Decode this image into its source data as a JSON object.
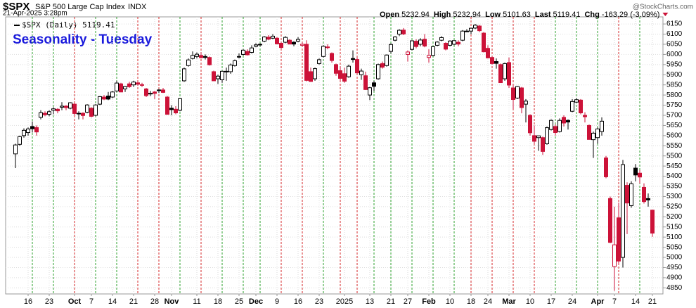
{
  "chart_data": {
    "type": "candlestick",
    "symbol": "$SPX",
    "name": "S&P 500 Large Cap Index",
    "exchange": "INDX",
    "date": "21-Apr-2025 3:28pm",
    "quote": [
      {
        "label": "Open",
        "value": "5232.94"
      },
      {
        "label": "High",
        "value": "5232.94"
      },
      {
        "label": "Low",
        "value": "5101.63"
      },
      {
        "label": "Last",
        "value": "5119.41"
      },
      {
        "label": "Chg",
        "value": "-163.29 (-3.09%)"
      }
    ],
    "watermark": "@StockCharts.com",
    "legend": "$SPX (Daily) 5119.41",
    "title": "Seasonality - Tuesday",
    "title_color": "#1a1adc",
    "up_color": "#000000",
    "down_color": "#cc1238",
    "grid": true,
    "ylim": [
      4820,
      6185
    ],
    "yticks": [
      4850,
      4900,
      4950,
      5000,
      5050,
      5100,
      5150,
      5200,
      5250,
      5300,
      5350,
      5400,
      5450,
      5500,
      5550,
      5600,
      5650,
      5700,
      5750,
      5800,
      5850,
      5900,
      5950,
      6000,
      6050,
      6100,
      6150
    ],
    "categories": [
      null,
      null,
      null,
      "16",
      null,
      null,
      null,
      null,
      "23",
      null,
      null,
      null,
      null,
      null,
      "Oct",
      null,
      null,
      null,
      "7",
      null,
      null,
      null,
      null,
      "14",
      null,
      null,
      null,
      null,
      "21",
      null,
      null,
      null,
      null,
      "28",
      null,
      null,
      null,
      "Nov",
      null,
      null,
      null,
      null,
      null,
      "11",
      null,
      null,
      null,
      null,
      "18",
      null,
      null,
      null,
      null,
      "25",
      null,
      null,
      null,
      "Dec",
      null,
      null,
      null,
      null,
      "9",
      null,
      null,
      null,
      null,
      "16",
      null,
      null,
      null,
      null,
      "23",
      null,
      null,
      null,
      null,
      null,
      "2025",
      null,
      null,
      null,
      null,
      null,
      "13",
      null,
      null,
      null,
      null,
      "21",
      null,
      null,
      null,
      "27",
      null,
      null,
      null,
      null,
      "Feb",
      null,
      null,
      null,
      null,
      "10",
      null,
      null,
      null,
      null,
      "18",
      null,
      null,
      null,
      "24",
      null,
      null,
      null,
      null,
      "Mar",
      null,
      null,
      null,
      null,
      "10",
      null,
      null,
      null,
      null,
      "17",
      null,
      null,
      null,
      null,
      "24",
      null,
      null,
      null,
      null,
      null,
      "Apr",
      null,
      null,
      null,
      "7",
      null,
      null,
      null,
      null,
      "14",
      null,
      null,
      null,
      "21"
    ],
    "ohlc": [
      [
        5510,
        5560,
        5440,
        5554
      ],
      [
        5557,
        5600,
        5550,
        5595
      ],
      [
        5600,
        5636,
        5590,
        5626
      ],
      [
        5615,
        5640,
        5600,
        5633
      ],
      [
        5645,
        5670,
        5615,
        5634
      ],
      [
        5640,
        5650,
        5600,
        5618
      ],
      [
        5690,
        5725,
        5680,
        5713
      ],
      [
        5710,
        5720,
        5695,
        5703
      ],
      [
        5705,
        5725,
        5695,
        5718
      ],
      [
        5725,
        5740,
        5705,
        5732
      ],
      [
        5730,
        5735,
        5710,
        5722
      ],
      [
        5740,
        5765,
        5725,
        5745
      ],
      [
        5745,
        5750,
        5725,
        5738
      ],
      [
        5735,
        5765,
        5730,
        5762
      ],
      [
        5755,
        5760,
        5700,
        5709
      ],
      [
        5710,
        5720,
        5680,
        5709
      ],
      [
        5710,
        5715,
        5680,
        5699
      ],
      [
        5715,
        5755,
        5710,
        5751
      ],
      [
        5735,
        5740,
        5690,
        5695
      ],
      [
        5700,
        5755,
        5695,
        5751
      ],
      [
        5755,
        5795,
        5750,
        5792
      ],
      [
        5790,
        5800,
        5775,
        5780
      ],
      [
        5795,
        5815,
        5775,
        5780
      ],
      [
        5790,
        5820,
        5785,
        5815
      ],
      [
        5820,
        5870,
        5815,
        5859
      ],
      [
        5855,
        5860,
        5815,
        5815
      ],
      [
        5830,
        5845,
        5815,
        5842
      ],
      [
        5855,
        5865,
        5835,
        5841
      ],
      [
        5850,
        5870,
        5840,
        5864
      ],
      [
        5860,
        5865,
        5845,
        5853
      ],
      [
        5850,
        5860,
        5840,
        5851
      ],
      [
        5830,
        5835,
        5790,
        5797
      ],
      [
        5805,
        5820,
        5795,
        5809
      ],
      [
        5815,
        5820,
        5780,
        5808
      ],
      [
        5825,
        5830,
        5810,
        5823
      ],
      [
        5825,
        5835,
        5810,
        5813
      ],
      [
        5790,
        5795,
        5705,
        5705
      ],
      [
        5735,
        5750,
        5700,
        5728
      ],
      [
        5730,
        5745,
        5705,
        5712
      ],
      [
        5725,
        5785,
        5720,
        5782
      ],
      [
        5870,
        5935,
        5865,
        5929
      ],
      [
        5945,
        5980,
        5940,
        5973
      ],
      [
        5980,
        6015,
        5975,
        5995
      ],
      [
        5990,
        6010,
        5980,
        6001
      ],
      [
        5995,
        6010,
        5980,
        5984
      ],
      [
        5990,
        6000,
        5975,
        5985
      ],
      [
        5985,
        5990,
        5945,
        5949
      ],
      [
        5915,
        5920,
        5870,
        5870
      ],
      [
        5880,
        5900,
        5855,
        5893
      ],
      [
        5875,
        5920,
        5860,
        5917
      ],
      [
        5915,
        5935,
        5870,
        5917
      ],
      [
        5915,
        5955,
        5905,
        5948
      ],
      [
        5945,
        5975,
        5940,
        5969
      ],
      [
        5990,
        6005,
        5980,
        5987
      ],
      [
        6000,
        6025,
        5995,
        6021
      ],
      [
        6015,
        6025,
        5995,
        5998
      ],
      [
        6010,
        6045,
        6005,
        6032
      ],
      [
        6040,
        6055,
        6035,
        6047
      ],
      [
        6050,
        6055,
        6040,
        6049
      ],
      [
        6065,
        6090,
        6060,
        6086
      ],
      [
        6085,
        6095,
        6070,
        6075
      ],
      [
        6080,
        6100,
        6075,
        6090
      ],
      [
        6080,
        6085,
        6050,
        6052
      ],
      [
        6055,
        6060,
        6025,
        6034
      ],
      [
        6060,
        6090,
        6055,
        6084
      ],
      [
        6070,
        6075,
        6050,
        6051
      ],
      [
        6060,
        6065,
        6040,
        6051
      ],
      [
        6065,
        6085,
        6060,
        6074
      ],
      [
        6045,
        6060,
        6040,
        6050
      ],
      [
        6050,
        6070,
        5867,
        5872
      ],
      [
        5915,
        5935,
        5865,
        5867
      ],
      [
        5880,
        5935,
        5870,
        5930
      ],
      [
        5955,
        5980,
        5950,
        5974
      ],
      [
        5990,
        6045,
        5985,
        6040
      ],
      [
        6035,
        6050,
        6025,
        6037
      ],
      [
        6005,
        6010,
        5960,
        5970
      ],
      [
        5950,
        5955,
        5895,
        5907
      ],
      [
        5920,
        5940,
        5870,
        5882
      ],
      [
        5905,
        5935,
        5860,
        5868
      ],
      [
        5890,
        5950,
        5885,
        5942
      ],
      [
        5980,
        6020,
        5960,
        5975
      ],
      [
        5975,
        5985,
        5905,
        5909
      ],
      [
        5900,
        5930,
        5875,
        5918
      ],
      [
        5895,
        5915,
        5825,
        5827
      ],
      [
        5800,
        5840,
        5775,
        5836
      ],
      [
        5860,
        5870,
        5820,
        5843
      ],
      [
        5880,
        5955,
        5875,
        5950
      ],
      [
        5955,
        5965,
        5930,
        5937
      ],
      [
        5945,
        6000,
        5940,
        5997
      ],
      [
        6015,
        6055,
        6005,
        6049
      ],
      [
        6070,
        6090,
        6065,
        6086
      ],
      [
        6100,
        6125,
        6090,
        6119
      ],
      [
        6120,
        6130,
        6095,
        6101
      ],
      [
        6000,
        6020,
        5965,
        6012
      ],
      [
        6025,
        6070,
        6020,
        6067
      ],
      [
        6065,
        6075,
        6030,
        6039
      ],
      [
        6050,
        6080,
        6040,
        6071
      ],
      [
        6075,
        6100,
        6035,
        6041
      ],
      [
        5985,
        6025,
        5960,
        5995
      ],
      [
        5995,
        6040,
        5990,
        6038
      ],
      [
        6045,
        6065,
        6040,
        6061
      ],
      [
        6070,
        6090,
        6065,
        6083
      ],
      [
        6055,
        6060,
        6020,
        6026
      ],
      [
        6045,
        6070,
        6040,
        6066
      ],
      [
        6050,
        6070,
        6045,
        6068
      ],
      [
        6060,
        6070,
        6040,
        6051
      ],
      [
        6070,
        6120,
        6065,
        6115
      ],
      [
        6115,
        6125,
        6110,
        6115
      ],
      [
        6115,
        6130,
        6100,
        6129
      ],
      [
        6130,
        6150,
        6125,
        6144
      ],
      [
        6140,
        6145,
        6110,
        6117
      ],
      [
        6105,
        6110,
        6010,
        6013
      ],
      [
        6030,
        6045,
        5980,
        5983
      ],
      [
        5985,
        5990,
        5950,
        5955
      ],
      [
        5965,
        5980,
        5930,
        5956
      ],
      [
        5950,
        5955,
        5860,
        5861
      ],
      [
        5880,
        5960,
        5870,
        5955
      ],
      [
        5960,
        5985,
        5835,
        5849
      ],
      [
        5835,
        5850,
        5730,
        5778
      ],
      [
        5785,
        5845,
        5780,
        5842
      ],
      [
        5835,
        5840,
        5710,
        5738
      ],
      [
        5755,
        5780,
        5665,
        5770
      ],
      [
        5700,
        5705,
        5600,
        5614
      ],
      [
        5600,
        5650,
        5560,
        5572
      ],
      [
        5590,
        5600,
        5525,
        5599
      ],
      [
        5590,
        5595,
        5505,
        5522
      ],
      [
        5560,
        5645,
        5555,
        5639
      ],
      [
        5630,
        5680,
        5625,
        5675
      ],
      [
        5645,
        5655,
        5600,
        5615
      ],
      [
        5620,
        5685,
        5615,
        5675
      ],
      [
        5690,
        5700,
        5645,
        5662
      ],
      [
        5675,
        5680,
        5630,
        5667
      ],
      [
        5720,
        5780,
        5715,
        5768
      ],
      [
        5765,
        5785,
        5760,
        5777
      ],
      [
        5775,
        5780,
        5705,
        5712
      ],
      [
        5700,
        5715,
        5665,
        5693
      ],
      [
        5650,
        5655,
        5580,
        5581
      ],
      [
        5580,
        5620,
        5490,
        5612
      ],
      [
        5590,
        5640,
        5560,
        5633
      ],
      [
        5620,
        5690,
        5600,
        5671
      ],
      [
        5490,
        5500,
        5390,
        5397
      ],
      [
        5290,
        5300,
        5070,
        5074
      ],
      [
        4955,
        5250,
        4835,
        5062
      ],
      [
        5195,
        5270,
        4970,
        4982
      ],
      [
        5000,
        5480,
        4950,
        5457
      ],
      [
        5355,
        5370,
        5115,
        5268
      ],
      [
        5255,
        5375,
        5245,
        5363
      ],
      [
        5440,
        5460,
        5375,
        5406
      ],
      [
        5415,
        5430,
        5365,
        5396
      ],
      [
        5345,
        5365,
        5265,
        5275
      ],
      [
        5290,
        5315,
        5250,
        5283
      ],
      [
        5232.94,
        5232.94,
        5101.63,
        5119.41
      ]
    ],
    "tuesdays": [
      4,
      9,
      14,
      19,
      24,
      29,
      34,
      39,
      44,
      49,
      54,
      58,
      63,
      68,
      73,
      77,
      81,
      85,
      89,
      94,
      99,
      104,
      108,
      113,
      118,
      123,
      128,
      133,
      138,
      143,
      148
    ],
    "tuesday_colors": [
      "#2ca02c",
      "#2ca02c",
      "#d62728",
      "#2ca02c",
      "#2ca02c",
      "#d62728",
      "#d62728",
      "#2ca02c",
      "#d62728",
      "#2ca02c",
      "#2ca02c",
      "#2ca02c",
      "#d62728",
      "#d62728",
      "#2ca02c",
      "#d62728",
      "#d62728",
      "#2ca02c",
      "#2ca02c",
      "#2ca02c",
      "#2ca02c",
      "#2ca02c",
      "#d62728",
      "#d62728",
      "#d62728",
      "#d62728",
      "#2ca02c",
      "#2ca02c",
      "#2ca02c",
      "#d62728",
      "#2ca02c"
    ]
  }
}
